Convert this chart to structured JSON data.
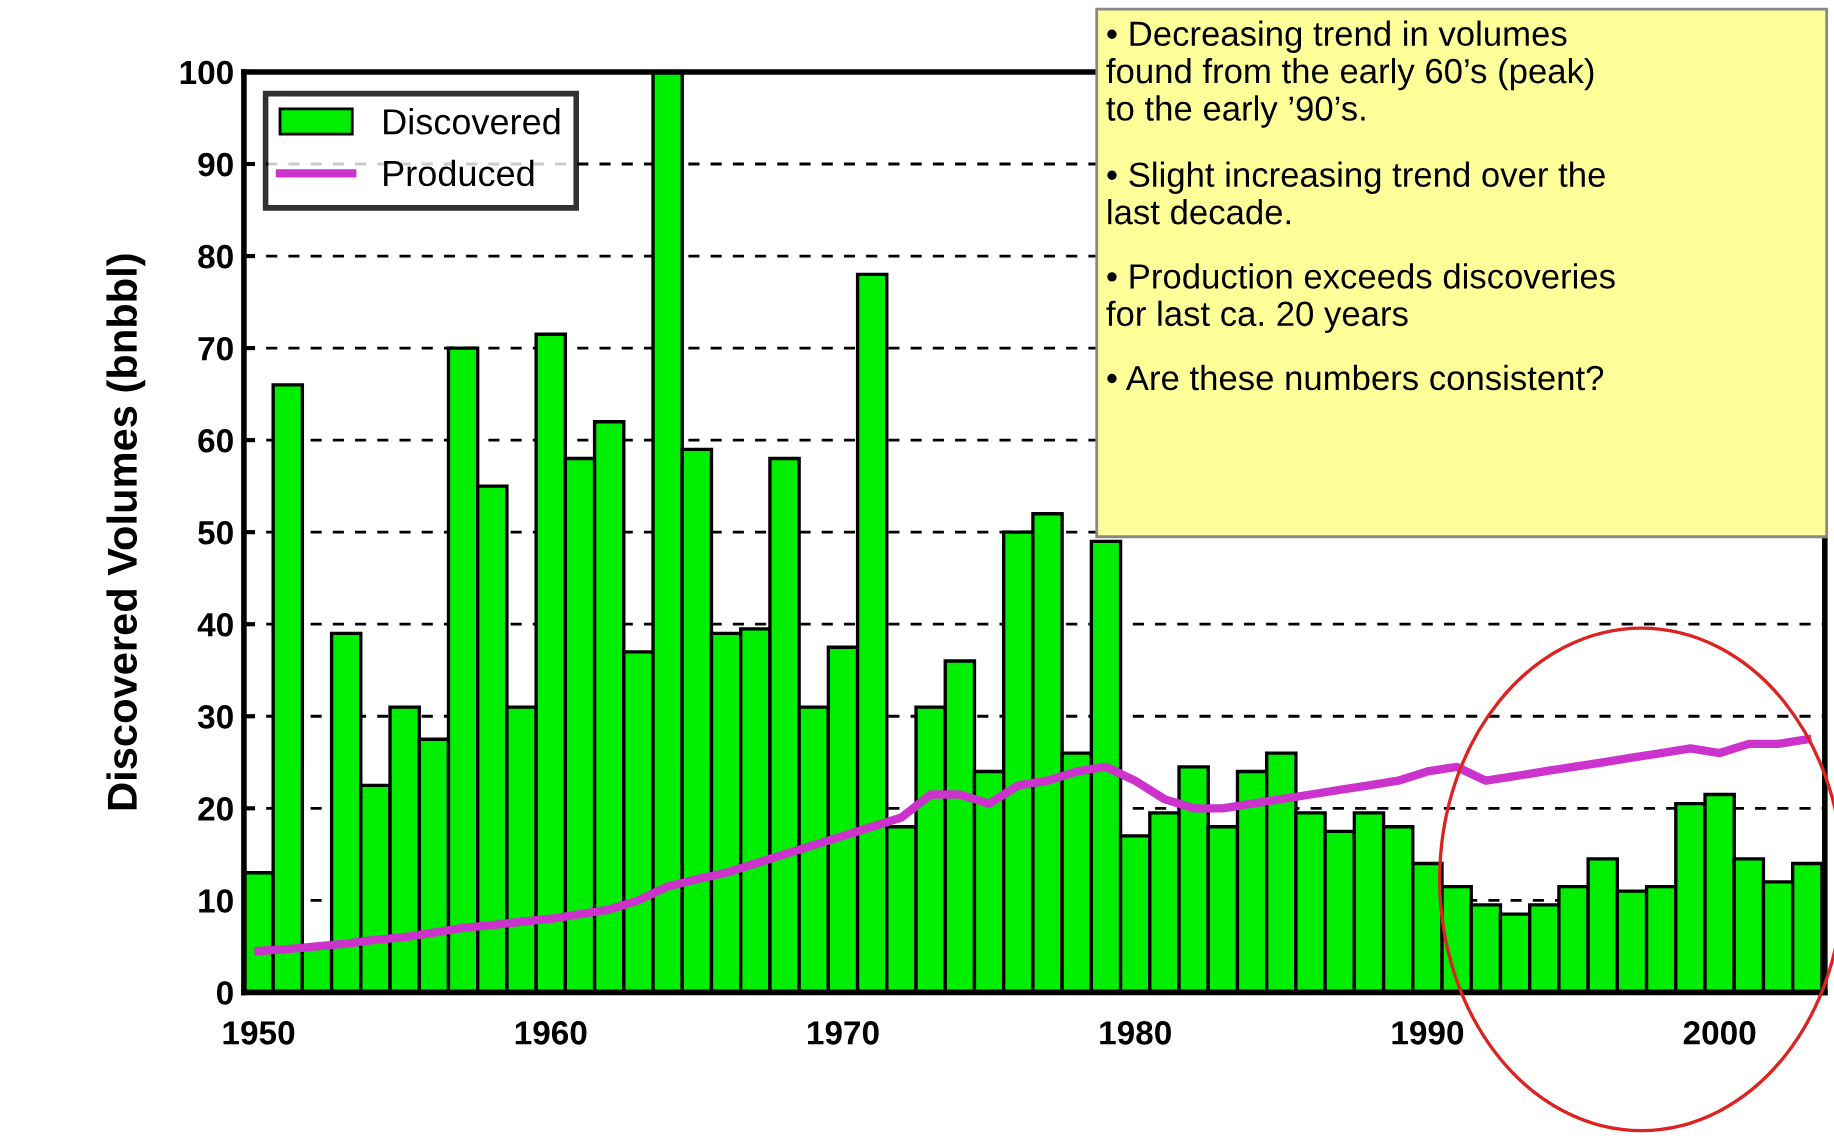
{
  "chart_data": {
    "type": "bar",
    "ylabel": "Discovered Volumes (bnbbl)",
    "x": [
      1950,
      1951,
      1952,
      1953,
      1954,
      1955,
      1956,
      1957,
      1958,
      1959,
      1960,
      1961,
      1962,
      1963,
      1964,
      1965,
      1966,
      1967,
      1968,
      1969,
      1970,
      1971,
      1972,
      1973,
      1974,
      1975,
      1976,
      1977,
      1978,
      1979,
      1980,
      1981,
      1982,
      1983,
      1984,
      1985,
      1986,
      1987,
      1988,
      1989,
      1990,
      1991,
      1992,
      1993,
      1994,
      1995,
      1996,
      1997,
      1998,
      1999,
      2000,
      2001,
      2002,
      2003
    ],
    "series": [
      {
        "name": "Discovered",
        "color": "#00ee00",
        "values": [
          13,
          66,
          5,
          39,
          22.5,
          31,
          27.5,
          70,
          55,
          31,
          71.5,
          58,
          62,
          37,
          100,
          59,
          39,
          39.5,
          58,
          31,
          37.5,
          78,
          18,
          31,
          36,
          24,
          50,
          52,
          26,
          49,
          17,
          19.5,
          24.5,
          18,
          24,
          26,
          19.5,
          17.5,
          19.5,
          18,
          14,
          11.5,
          9.5,
          8.5,
          9.5,
          11.5,
          14.5,
          11,
          11.5,
          20.5,
          21.5,
          14.5,
          12,
          14
        ]
      },
      {
        "name": "Produced",
        "type": "line",
        "color": "#cc33cc",
        "values": [
          4.5,
          4.7,
          5,
          5.3,
          5.7,
          6,
          6.5,
          7,
          7.3,
          7.7,
          8,
          8.5,
          9,
          10,
          11.5,
          12.3,
          13,
          14,
          15,
          16,
          17,
          18,
          19,
          21.5,
          21.5,
          20.5,
          22.5,
          23,
          24,
          24.5,
          23,
          21,
          20,
          20,
          20.5,
          21,
          21.5,
          22,
          22.5,
          23,
          24,
          24.5,
          23,
          23.5,
          24,
          24.5,
          25,
          25.5,
          26,
          26.5,
          26,
          27,
          27,
          27.5
        ]
      }
    ],
    "xlim": [
      1949.5,
      2003.6
    ],
    "xticks": [
      1950,
      1960,
      1970,
      1980,
      1990,
      2000
    ],
    "ylim": [
      0,
      100
    ],
    "yticks": [
      0,
      10,
      20,
      30,
      40,
      50,
      60,
      70,
      80,
      90,
      100
    ],
    "grid": "y",
    "legend": "top left",
    "marker": "none",
    "line_style": "solid",
    "annotations": [
      "• Decreasing trend in volumes\nfound from the early 60’s (peak)\nto the early ’90’s.",
      "• Slight increasing trend over the\nlast decade.",
      "• Production exceeds discoveries\nfor last ca. 20 years",
      "• Are these numbers consistent?"
    ]
  }
}
